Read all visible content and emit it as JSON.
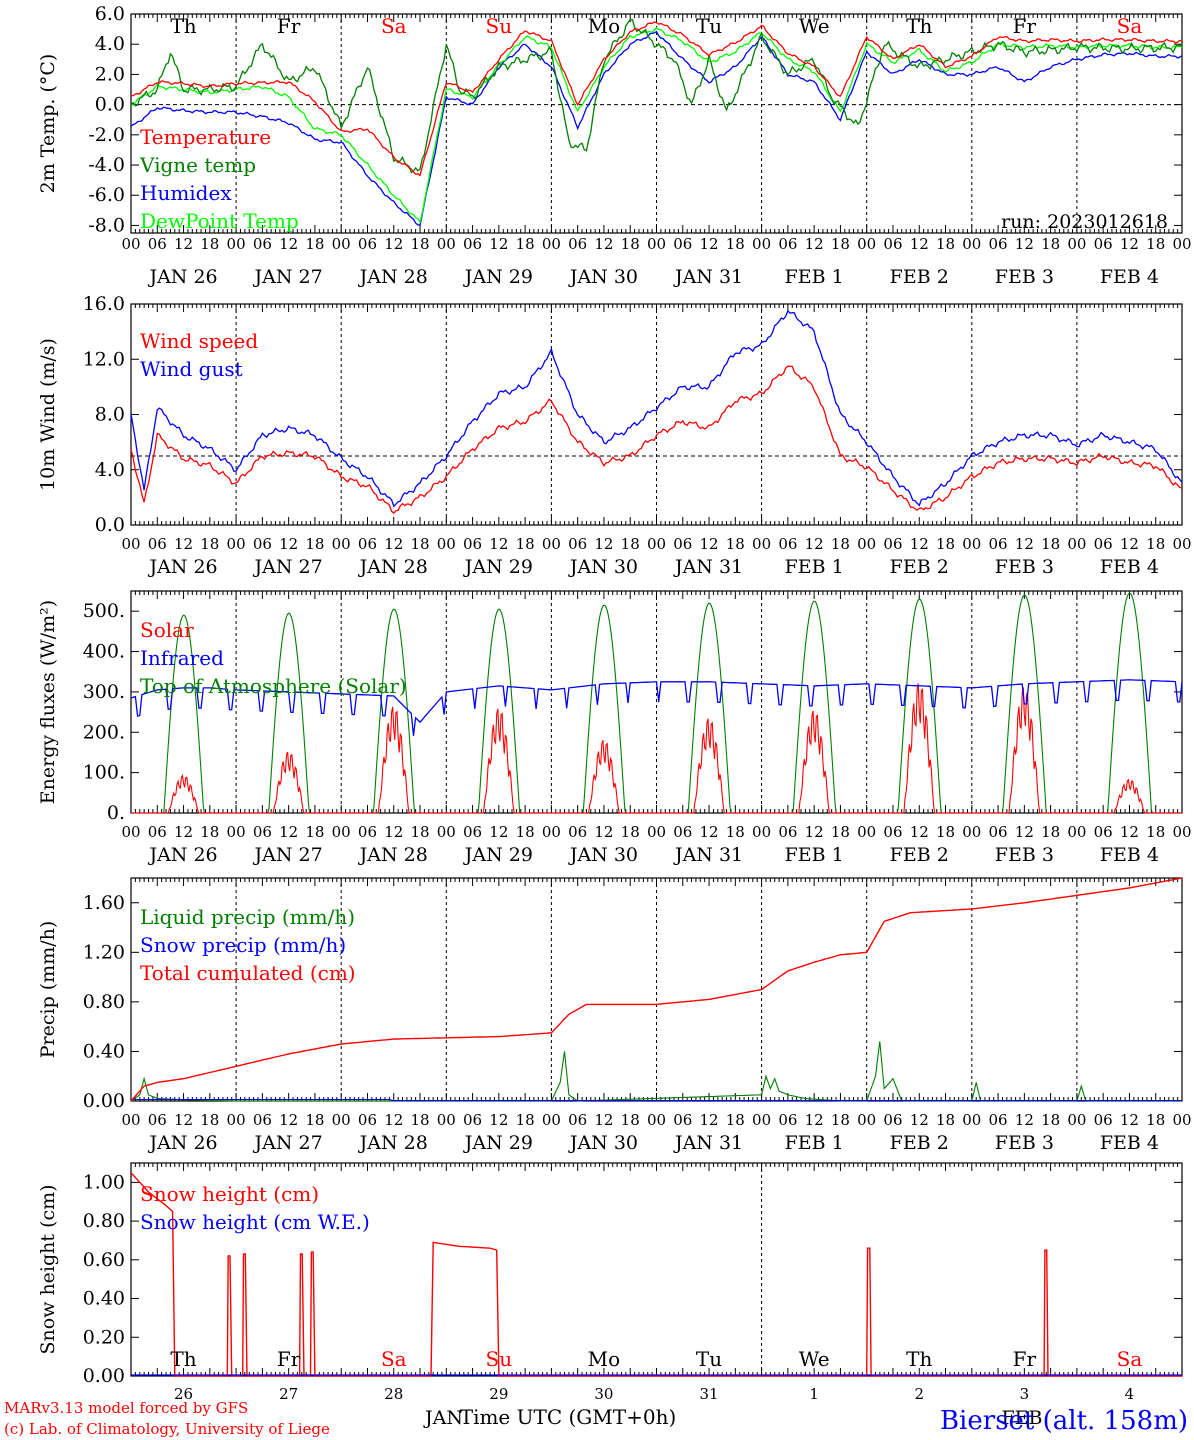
{
  "days": [
    "JAN 26",
    "JAN 27",
    "JAN 28",
    "JAN 29",
    "JAN 30",
    "JAN 31",
    "FEB  1",
    "FEB  2",
    "FEB  3",
    "FEB  4"
  ],
  "weekdays": [
    "Th",
    "Fr",
    "Sa",
    "Su",
    "Mo",
    "Tu",
    "We",
    "Th",
    "Fr",
    "Sa"
  ],
  "weekday_colors": [
    "#000000",
    "#000000",
    "#ff0000",
    "#ff0000",
    "#000000",
    "#000000",
    "#000000",
    "#000000",
    "#000000",
    "#ff0000"
  ],
  "hour_ticks": [
    "00",
    "06",
    "12",
    "18"
  ],
  "bottom_days": [
    "26",
    "27",
    "28",
    "29",
    "30",
    "31",
    "1",
    "2",
    "3",
    "4"
  ],
  "month_labels": [
    "JAN",
    "FEB"
  ],
  "colors": {
    "red": "#ff0000",
    "green": "#008000",
    "blue": "#0000ff",
    "lime": "#00ff00",
    "black": "#000000"
  },
  "footer": {
    "xlabel": "Time UTC (GMT+0h)",
    "credit1": "MARv3.13 model forced by GFS",
    "credit2": "(c) Lab. of Climatology, University of Liege",
    "station": "Bierset (alt. 158m)"
  },
  "chart_data": [
    {
      "type": "line",
      "ylabel": "2m Temp. (°C)",
      "ylim": [
        -8.5,
        6.0
      ],
      "yticks": [
        "6.0",
        "4.0",
        "2.0",
        "0.0",
        "-2.0",
        "-4.0",
        "-6.0",
        "-8.0"
      ],
      "annotation": "run: 2023012618",
      "legend": [
        "Temperature",
        "Vigne temp",
        "Humidex",
        "DewPoint Temp"
      ],
      "x_unit": "hours since JAN 26 00 UTC",
      "series": [
        {
          "name": "Temperature",
          "color": "red",
          "x": [
            0,
            6,
            12,
            18,
            24,
            36,
            42,
            48,
            54,
            60,
            66,
            72,
            78,
            84,
            90,
            96,
            102,
            108,
            114,
            120,
            126,
            132,
            138,
            144,
            150,
            156,
            162,
            168,
            174,
            180,
            186,
            192,
            198,
            204,
            210,
            216,
            222,
            228,
            234,
            240
          ],
          "y": [
            0.5,
            1.5,
            1.4,
            1.2,
            1.4,
            1.5,
            0.2,
            -1.8,
            -1.6,
            -3.5,
            -4.7,
            1.5,
            0.8,
            3.0,
            4.9,
            4.2,
            0.0,
            3.0,
            4.8,
            5.5,
            4.6,
            3.3,
            4.1,
            5.2,
            3.4,
            2.5,
            0.5,
            4.5,
            3.0,
            4.0,
            2.5,
            3.2,
            4.5,
            4.2,
            4.3,
            4.2,
            4.3,
            4.3,
            4.2,
            4.2
          ]
        },
        {
          "name": "Vigne temp",
          "color": "green",
          "x": [
            0,
            3,
            6,
            9,
            12,
            18,
            24,
            30,
            36,
            42,
            48,
            54,
            60,
            66,
            72,
            75,
            78,
            84,
            90,
            96,
            100,
            104,
            108,
            114,
            120,
            124,
            128,
            132,
            136,
            140,
            144,
            150,
            156,
            160,
            166,
            172,
            180,
            186,
            192,
            198,
            204,
            210,
            216,
            228,
            240
          ],
          "y": [
            0.0,
            0.5,
            1.0,
            3.5,
            1.0,
            1.0,
            1.2,
            4.0,
            1.5,
            2.5,
            -1.5,
            2.5,
            -3.5,
            -4.5,
            4.0,
            1.0,
            0.5,
            2.5,
            3.0,
            3.5,
            -2.5,
            -3.0,
            3.0,
            5.5,
            4.0,
            3.0,
            0.0,
            3.0,
            -0.5,
            2.0,
            4.5,
            2.0,
            3.0,
            0.5,
            -1.5,
            4.0,
            2.5,
            3.0,
            3.5,
            4.0,
            3.5,
            3.6,
            3.8,
            3.7,
            3.8
          ]
        },
        {
          "name": "Humidex",
          "color": "blue",
          "x": [
            0,
            6,
            12,
            18,
            24,
            30,
            36,
            42,
            48,
            54,
            60,
            66,
            72,
            78,
            84,
            90,
            96,
            102,
            108,
            114,
            120,
            126,
            132,
            138,
            144,
            150,
            156,
            162,
            168,
            174,
            180,
            186,
            192,
            198,
            204,
            210,
            216,
            222,
            228,
            234,
            240
          ],
          "y": [
            -1.5,
            -0.2,
            -0.4,
            -0.5,
            -0.5,
            -0.8,
            -1.2,
            -2.3,
            -2.5,
            -4.7,
            -6.5,
            -8.0,
            0.5,
            0.0,
            2.5,
            4.0,
            2.5,
            -1.5,
            2.0,
            4.0,
            4.8,
            3.0,
            1.5,
            2.5,
            4.5,
            2.0,
            1.5,
            -1.0,
            3.5,
            2.0,
            3.0,
            2.0,
            2.0,
            2.5,
            1.5,
            2.5,
            3.0,
            3.3,
            3.4,
            3.2,
            3.2
          ]
        },
        {
          "name": "DewPoint Temp",
          "color": "lime",
          "x": [
            0,
            6,
            12,
            18,
            24,
            30,
            36,
            42,
            48,
            54,
            60,
            66,
            72,
            78,
            84,
            90,
            96,
            102,
            108,
            114,
            120,
            126,
            132,
            138,
            144,
            150,
            156,
            162,
            168,
            174,
            180,
            186,
            192,
            198,
            204,
            210,
            216,
            222,
            228,
            234,
            240
          ],
          "y": [
            0.0,
            1.2,
            1.0,
            0.8,
            1.0,
            1.2,
            0.5,
            -1.6,
            -2.0,
            -4.0,
            -6.0,
            -7.8,
            1.0,
            0.5,
            2.6,
            4.5,
            3.8,
            -0.5,
            2.5,
            4.5,
            5.0,
            4.2,
            2.8,
            3.5,
            4.8,
            3.0,
            2.2,
            -0.5,
            4.0,
            2.8,
            3.6,
            2.2,
            2.8,
            4.0,
            3.8,
            3.9,
            3.8,
            3.9,
            3.9,
            3.8,
            3.8
          ]
        }
      ]
    },
    {
      "type": "line",
      "ylabel": "10m Wind (m/s)",
      "ylim": [
        0,
        16
      ],
      "yticks": [
        "16.0",
        "12.0",
        "8.0",
        "4.0",
        "0.0"
      ],
      "legend": [
        "Wind speed",
        "Wind gust"
      ],
      "x_unit": "hours since JAN 26 00 UTC",
      "series": [
        {
          "name": "Wind speed",
          "color": "red",
          "x": [
            0,
            3,
            6,
            12,
            18,
            24,
            30,
            36,
            42,
            48,
            54,
            60,
            66,
            72,
            78,
            84,
            90,
            96,
            102,
            108,
            114,
            120,
            126,
            132,
            138,
            144,
            150,
            156,
            162,
            168,
            174,
            180,
            186,
            192,
            198,
            204,
            210,
            216,
            222,
            228,
            234,
            240
          ],
          "y": [
            5.5,
            1.5,
            6.5,
            4.8,
            4.3,
            3.0,
            5.0,
            5.2,
            5.0,
            3.5,
            2.8,
            1.0,
            2.0,
            3.5,
            5.5,
            7.0,
            7.5,
            9.0,
            6.0,
            4.5,
            5.0,
            6.5,
            7.5,
            7.0,
            9.0,
            9.5,
            11.5,
            10.0,
            5.0,
            4.2,
            2.5,
            1.0,
            2.0,
            3.5,
            4.5,
            4.8,
            4.8,
            4.5,
            5.0,
            4.5,
            4.3,
            2.5
          ]
        },
        {
          "name": "Wind gust",
          "color": "blue",
          "x": [
            0,
            3,
            6,
            12,
            18,
            24,
            30,
            36,
            42,
            48,
            54,
            60,
            66,
            72,
            78,
            84,
            90,
            96,
            102,
            108,
            114,
            120,
            126,
            132,
            138,
            144,
            150,
            156,
            162,
            168,
            174,
            180,
            186,
            192,
            198,
            204,
            210,
            216,
            222,
            228,
            234,
            240
          ],
          "y": [
            8.0,
            2.5,
            8.5,
            6.5,
            5.5,
            4.0,
            6.5,
            7.0,
            6.5,
            4.8,
            3.5,
            1.5,
            3.0,
            5.0,
            7.5,
            9.5,
            10.0,
            12.5,
            8.0,
            6.0,
            7.0,
            8.5,
            10.0,
            10.0,
            12.5,
            13.0,
            15.5,
            14.0,
            8.0,
            6.0,
            3.5,
            1.5,
            3.0,
            5.0,
            6.0,
            6.5,
            6.5,
            5.8,
            6.5,
            6.0,
            5.5,
            3.0
          ]
        }
      ]
    },
    {
      "type": "line",
      "ylabel": "Energy fluxes (W/m²)",
      "ylim": [
        0,
        550
      ],
      "yticks": [
        "500.",
        "400.",
        "300.",
        "200.",
        "100.",
        "0."
      ],
      "legend": [
        "Solar",
        "Infrared",
        "Top of Atmosphere (Solar)"
      ],
      "toa_peaks": [
        490,
        495,
        505,
        505,
        515,
        520,
        525,
        530,
        540,
        545
      ],
      "solar_peaks": [
        95,
        155,
        270,
        265,
        185,
        240,
        260,
        330,
        320,
        85
      ],
      "infrared": {
        "x": [
          0,
          6,
          12,
          18,
          24,
          36,
          48,
          60,
          66,
          72,
          84,
          96,
          108,
          120,
          132,
          144,
          156,
          168,
          180,
          192,
          204,
          216,
          228,
          240
        ],
        "y": [
          285,
          305,
          310,
          310,
          305,
          300,
          295,
          290,
          225,
          300,
          315,
          305,
          320,
          325,
          325,
          320,
          315,
          320,
          315,
          310,
          320,
          325,
          330,
          325
        ]
      }
    },
    {
      "type": "line",
      "ylabel": "Precip (mm/h)",
      "ylim": [
        0,
        1.8
      ],
      "yticks": [
        "1.60",
        "1.20",
        "0.80",
        "0.40",
        "0.00"
      ],
      "legend": [
        "Liquid precip (mm/h)",
        "Snow precip (mm/h)",
        "Total cumulated (cm)"
      ],
      "series": [
        {
          "name": "Total cumulated (cm)",
          "color": "red",
          "x": [
            0,
            3,
            6,
            12,
            24,
            36,
            48,
            60,
            72,
            84,
            96,
            100,
            104,
            108,
            120,
            132,
            144,
            150,
            156,
            162,
            168,
            172,
            178,
            192,
            204,
            216,
            228,
            240
          ],
          "y": [
            0.0,
            0.12,
            0.15,
            0.18,
            0.28,
            0.38,
            0.46,
            0.5,
            0.51,
            0.52,
            0.55,
            0.7,
            0.78,
            0.78,
            0.78,
            0.82,
            0.9,
            1.05,
            1.12,
            1.18,
            1.2,
            1.45,
            1.52,
            1.55,
            1.6,
            1.66,
            1.72,
            1.8
          ]
        },
        {
          "name": "Liquid precip (mm/h)",
          "color": "green",
          "x": [
            0,
            2,
            3,
            4,
            6,
            12,
            24,
            96,
            98,
            99,
            100,
            102,
            144,
            145,
            146,
            147,
            148,
            150,
            154,
            162,
            168,
            170,
            171,
            172,
            174,
            176,
            192,
            193,
            194,
            216,
            217,
            218,
            240
          ],
          "y": [
            0,
            0.05,
            0.18,
            0.05,
            0.02,
            0.01,
            0.0,
            0.0,
            0.15,
            0.4,
            0.05,
            0.0,
            0.05,
            0.2,
            0.1,
            0.18,
            0.08,
            0.05,
            0.02,
            0.0,
            0.0,
            0.2,
            0.48,
            0.1,
            0.18,
            0.0,
            0.0,
            0.15,
            0.0,
            0.0,
            0.12,
            0.0,
            0.0
          ]
        }
      ]
    },
    {
      "type": "line",
      "ylabel": "Snow height (cm)",
      "ylim": [
        0,
        1.1
      ],
      "yticks": [
        "1.00",
        "0.80",
        "0.60",
        "0.40",
        "0.20",
        "0.00"
      ],
      "legend": [
        "Snow height (cm)",
        "Snow height (cm W.E.)"
      ],
      "series": [
        {
          "name": "Snow height (cm)",
          "color": "red",
          "x": [
            0,
            4,
            8,
            9.5,
            10,
            22,
            22.2,
            22.6,
            23,
            25.5,
            25.7,
            26.1,
            26.5,
            38.5,
            38.7,
            39.1,
            39.5,
            41,
            41.2,
            41.6,
            42,
            68.5,
            69,
            75,
            82,
            83.5,
            84,
            168,
            168.2,
            168.7,
            169,
            208.5,
            208.7,
            209.1,
            209.4,
            240
          ],
          "y": [
            1.05,
            0.95,
            0.88,
            0.85,
            0.0,
            0.0,
            0.62,
            0.62,
            0.0,
            0.0,
            0.63,
            0.63,
            0.0,
            0.0,
            0.63,
            0.63,
            0.0,
            0.0,
            0.64,
            0.64,
            0.0,
            0.0,
            0.69,
            0.67,
            0.66,
            0.65,
            0.0,
            0.0,
            0.66,
            0.66,
            0.0,
            0.0,
            0.65,
            0.65,
            0.0,
            0.0
          ]
        }
      ]
    }
  ]
}
